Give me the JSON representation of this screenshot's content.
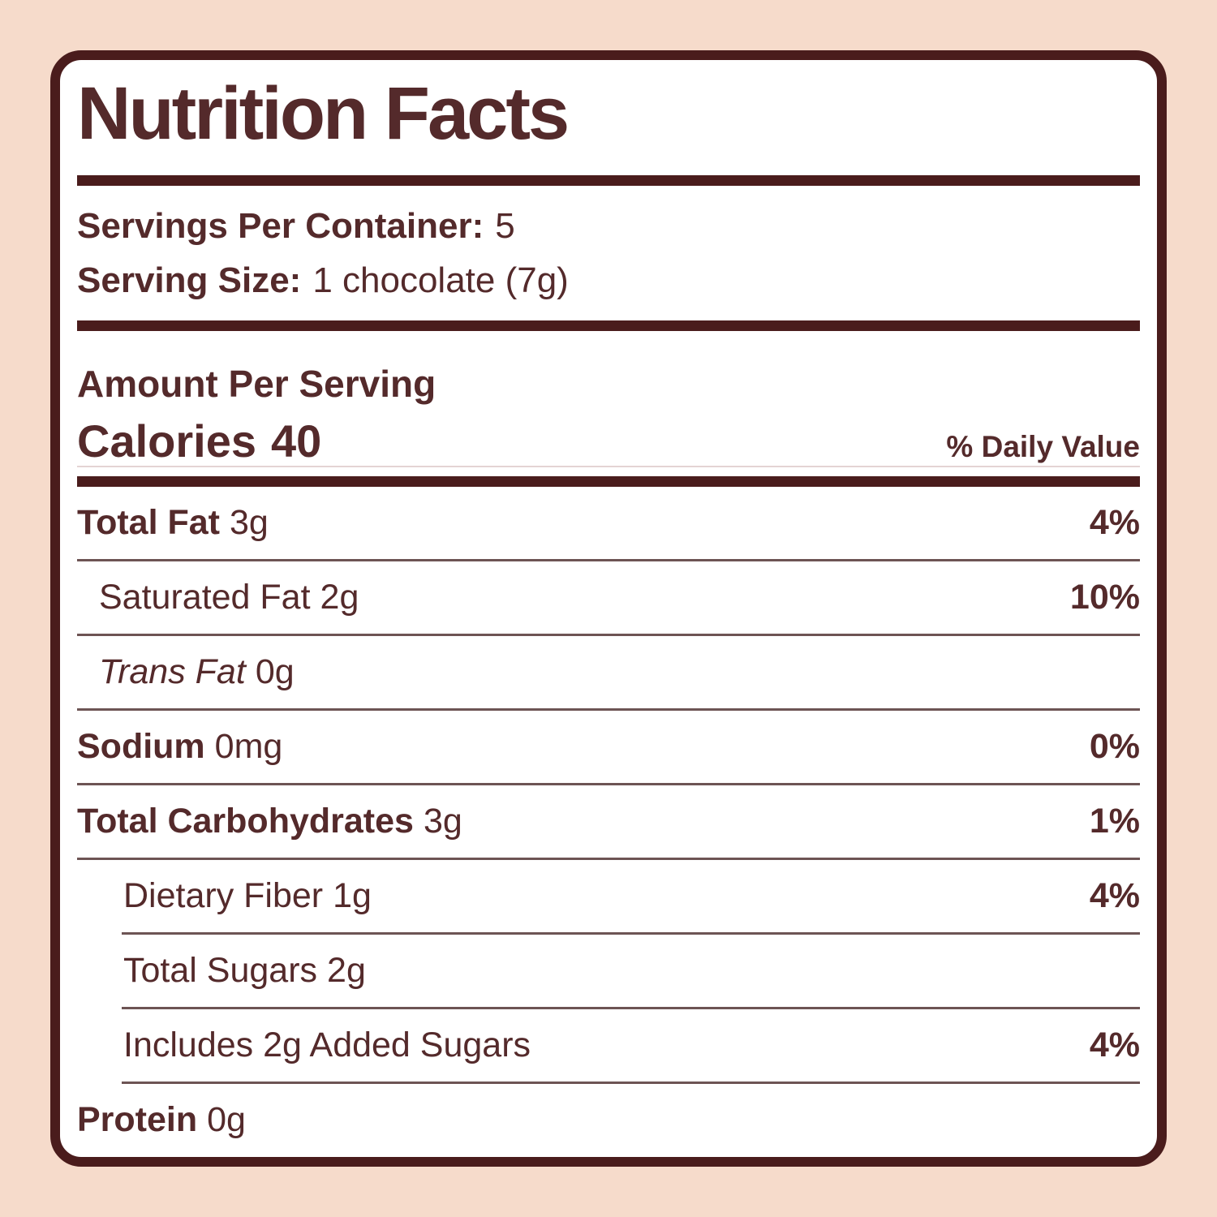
{
  "colors": {
    "page-bg": "#F6DBCB",
    "card-bg": "#FFFFFF",
    "frame": "#4A1C1C",
    "text": "#542A2B",
    "divider": "#6D5454",
    "light-divider": "#E4D4D4"
  },
  "title": "Nutrition Facts",
  "servings": {
    "per_container_label": "Servings Per Container:",
    "per_container_value": "5",
    "size_label": "Serving Size:",
    "size_value": "1 chocolate (7g)"
  },
  "amount_per_serving_label": "Amount Per Serving",
  "calories_label": "Calories",
  "calories_value": "40",
  "daily_value_header": "% Daily Value",
  "nutrients": [
    {
      "name": "Total Fat",
      "amount": "3g",
      "dv": "4%"
    },
    {
      "name": "Saturated Fat",
      "amount": "2g",
      "dv": "10%"
    },
    {
      "name": "Trans Fat",
      "amount": "0g",
      "dv": ""
    },
    {
      "name": "Sodium",
      "amount": "0mg",
      "dv": "0%"
    },
    {
      "name": "Total Carbohydrates",
      "amount": "3g",
      "dv": "1%"
    },
    {
      "name": "Dietary Fiber",
      "amount": "1g",
      "dv": "4%"
    },
    {
      "name": "Total Sugars",
      "amount": "2g",
      "dv": ""
    },
    {
      "name": "Includes 2g Added Sugars",
      "amount": "",
      "dv": "4%"
    },
    {
      "name": "Protein",
      "amount": "0g",
      "dv": ""
    }
  ]
}
